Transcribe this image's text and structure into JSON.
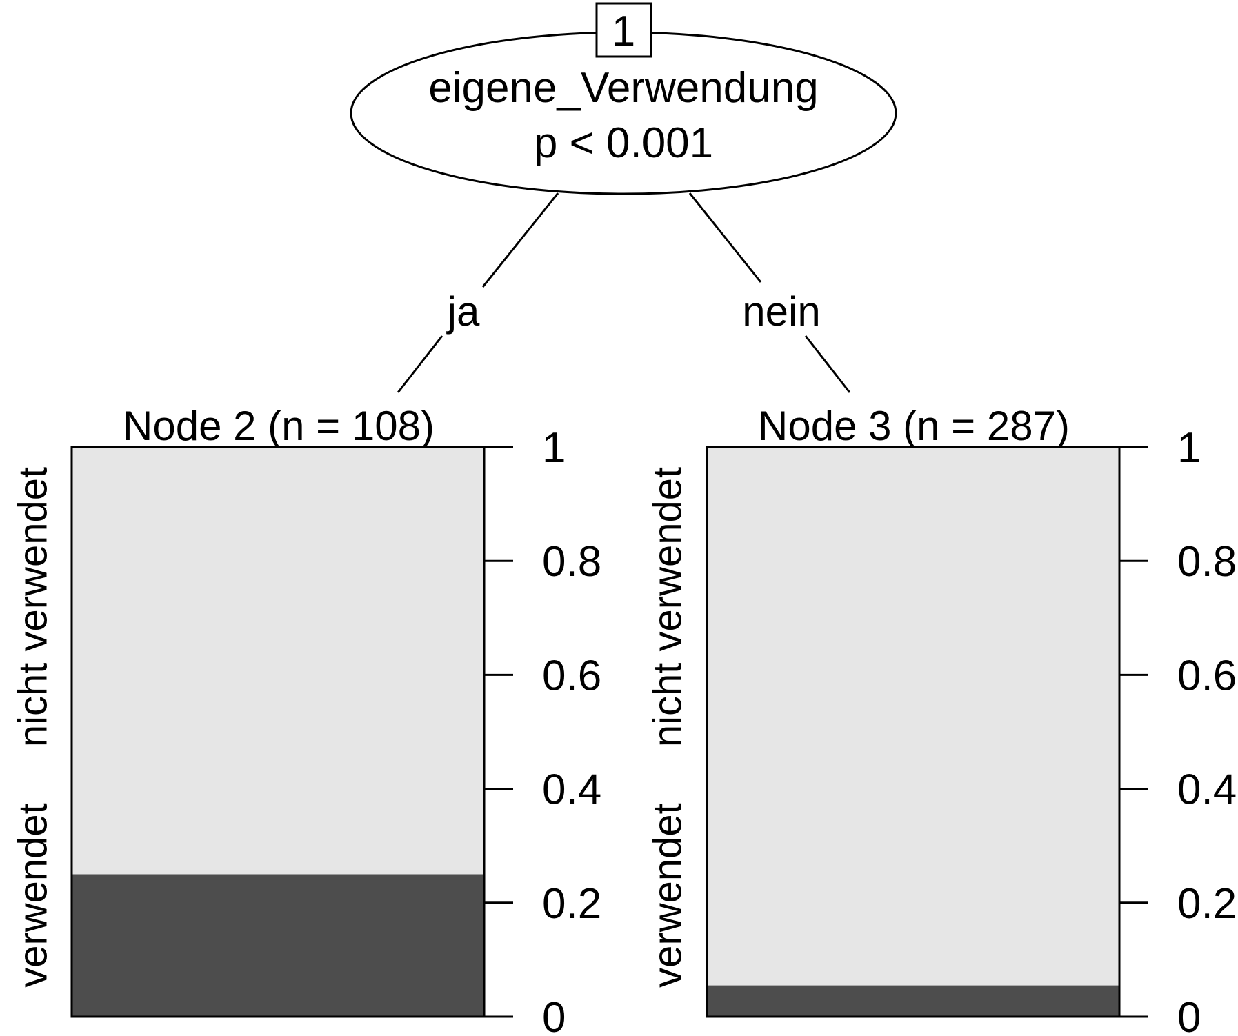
{
  "inner_node": {
    "id": "1",
    "variable": "eigene_Verwendung",
    "p_value": "p < 0.001"
  },
  "edges": [
    {
      "label": "ja"
    },
    {
      "label": "nein"
    }
  ],
  "colors": {
    "verwendet": "#4d4d4d",
    "nicht_verwendet": "#e6e6e6",
    "stroke": "#000000"
  },
  "chart_data": [
    {
      "type": "bar",
      "title": "Node 2 (n = 108)",
      "categories": [
        "verwendet",
        "nicht verwendet"
      ],
      "values": [
        0.25,
        0.75
      ],
      "ylim": [
        0,
        1
      ],
      "ticks": [
        "0",
        "0.2",
        "0.4",
        "0.6",
        "0.8",
        "1"
      ],
      "stacked": true,
      "grid": false
    },
    {
      "type": "bar",
      "title": "Node 3 (n = 287)",
      "categories": [
        "verwendet",
        "nicht verwendet"
      ],
      "values": [
        0.055,
        0.945
      ],
      "ylim": [
        0,
        1
      ],
      "ticks": [
        "0",
        "0.2",
        "0.4",
        "0.6",
        "0.8",
        "1"
      ],
      "stacked": true,
      "grid": false
    }
  ]
}
